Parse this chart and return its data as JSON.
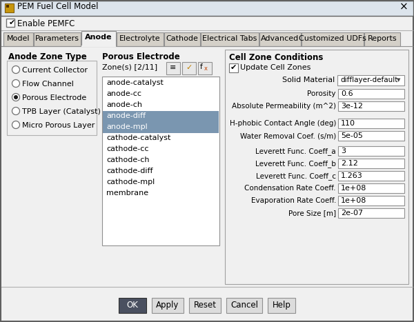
{
  "title": "PEM Fuel Cell Model",
  "bg_color": "#f0f0f0",
  "tabs": [
    "Model",
    "Parameters",
    "Anode",
    "Electrolyte",
    "Cathode",
    "Electrical Tabs",
    "Advanced",
    "Customized UDFs",
    "Reports"
  ],
  "active_tab": "Anode",
  "anode_zone_types": [
    "Current Collector",
    "Flow Channel",
    "Porous Electrode",
    "TPB Layer (Catalyst)",
    "Micro Porous Layer"
  ],
  "selected_zone_type": "Porous Electrode",
  "zones_label": "Zone(s) [2/11]",
  "zone_list": [
    "anode-catalyst",
    "anode-cc",
    "anode-ch",
    "anode-diff",
    "anode-mpl",
    "cathode-catalyst",
    "cathode-cc",
    "cathode-ch",
    "cathode-diff",
    "cathode-mpl",
    "membrane"
  ],
  "selected_zones": [
    "anode-diff",
    "anode-mpl"
  ],
  "cell_zone_conditions_label": "Cell Zone Conditions",
  "solid_material": "difflayer-default",
  "fields": [
    {
      "label": "Porosity",
      "value": "0.6"
    },
    {
      "label": "Absolute Permeability (m^2)",
      "value": "3e-12"
    },
    {
      "label": "H-phobic Contact Angle (deg)",
      "value": "110"
    },
    {
      "label": "Water Removal Coef. (s/m)",
      "value": "5e-05"
    },
    {
      "label": "Leverett Func. Coeff_a",
      "value": "3"
    },
    {
      "label": "Leverett Func. Coeff_b",
      "value": "2.12"
    },
    {
      "label": "Leverett Func. Coeff_c",
      "value": "1.263"
    },
    {
      "label": "Condensation Rate Coeff.",
      "value": "1e+08"
    },
    {
      "label": "Evaporation Rate Coeff.",
      "value": "1e+08"
    },
    {
      "label": "Pore Size [m]",
      "value": "2e-07"
    }
  ],
  "buttons": [
    "OK",
    "Apply",
    "Reset",
    "Cancel",
    "Help"
  ],
  "highlight_color": "#7a96b0",
  "tab_active_bg": "#f0f0f0",
  "tab_inactive_bg": "#d4d0c8",
  "ok_button_bg": "#4a5060",
  "title_bar_bg": "#d8d8d8",
  "content_bg": "#f0f0f0",
  "list_bg": "#ffffff",
  "field_bg": "#ffffff",
  "panel_border": "#a0a0a0",
  "tab_widths": [
    43,
    68,
    50,
    68,
    52,
    84,
    60,
    90,
    52
  ]
}
